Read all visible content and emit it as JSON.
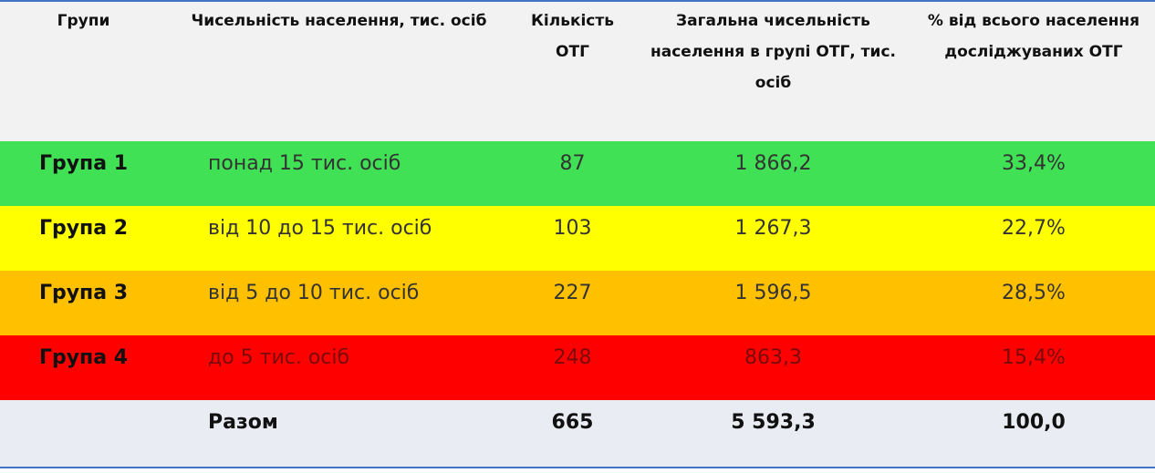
{
  "table": {
    "header": [
      "Групи",
      "Чисельність населення, тис. осіб",
      "Кількість ОТГ",
      "Загальна чисельність населення в групі ОТГ, тис. осіб",
      "% від всього населення досліджуваних ОТГ"
    ],
    "rows": [
      [
        "Група 1",
        "понад 15 тис. осіб",
        "87",
        "1 866,2",
        "33,4%"
      ],
      [
        "Група 2",
        "від 10 до 15 тис. осіб",
        "103",
        "1 267,3",
        "22,7%"
      ],
      [
        "Група 3",
        "від 5 до 10 тис. осіб",
        "227",
        "1 596,5",
        "28,5%"
      ],
      [
        "Група 4",
        "до 5 тис. осіб",
        "248",
        "863,3",
        "15,4%"
      ]
    ],
    "total": [
      "Разом",
      "665",
      "5 593,3",
      "100,0"
    ]
  }
}
